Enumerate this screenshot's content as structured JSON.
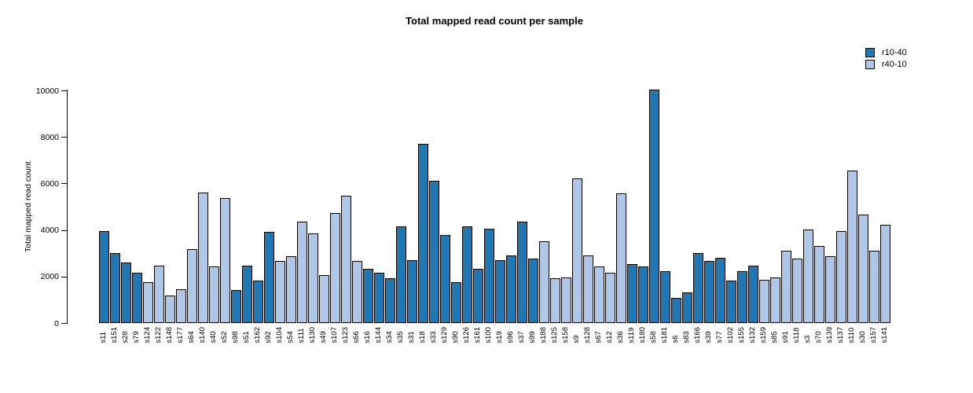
{
  "title": "Total mapped read count per sample",
  "y_axis": {
    "label": "Total mapped read count",
    "ticks": [
      0,
      2000,
      4000,
      6000,
      8000,
      10000
    ],
    "max": 10000
  },
  "legend": [
    {
      "label": "r10-40",
      "series": "r10-40"
    },
    {
      "label": "r40-10",
      "series": "r40-10"
    }
  ],
  "colors": {
    "r10-40": "#1f77b4",
    "r40-10": "#aec7e8"
  },
  "chart_data": {
    "type": "bar",
    "title": "Total mapped read count per sample",
    "xlabel": "",
    "ylabel": "Total mapped read count",
    "ylim": [
      0,
      10000
    ],
    "grid": false,
    "legend_position": "top-right",
    "series_names": [
      "r10-40",
      "r40-10"
    ],
    "samples": [
      {
        "label": "s11",
        "value": 3900,
        "series": "r10-40"
      },
      {
        "label": "s151",
        "value": 2950,
        "series": "r10-40"
      },
      {
        "label": "s28",
        "value": 2550,
        "series": "r10-40"
      },
      {
        "label": "s79",
        "value": 2100,
        "series": "r10-40"
      },
      {
        "label": "s124",
        "value": 1700,
        "series": "r40-10"
      },
      {
        "label": "s122",
        "value": 2400,
        "series": "r40-10"
      },
      {
        "label": "s148",
        "value": 1100,
        "series": "r40-10"
      },
      {
        "label": "s177",
        "value": 1400,
        "series": "r40-10"
      },
      {
        "label": "s64",
        "value": 3100,
        "series": "r40-10"
      },
      {
        "label": "s140",
        "value": 5550,
        "series": "r40-10"
      },
      {
        "label": "s40",
        "value": 2350,
        "series": "r40-10"
      },
      {
        "label": "s52",
        "value": 5300,
        "series": "r40-10"
      },
      {
        "label": "s98",
        "value": 1350,
        "series": "r10-40"
      },
      {
        "label": "s51",
        "value": 2400,
        "series": "r10-40"
      },
      {
        "label": "s162",
        "value": 1750,
        "series": "r10-40"
      },
      {
        "label": "s92",
        "value": 3850,
        "series": "r10-40"
      },
      {
        "label": "s104",
        "value": 2600,
        "series": "r40-10"
      },
      {
        "label": "s54",
        "value": 2800,
        "series": "r40-10"
      },
      {
        "label": "s111",
        "value": 4300,
        "series": "r40-10"
      },
      {
        "label": "s130",
        "value": 3800,
        "series": "r40-10"
      },
      {
        "label": "s49",
        "value": 2000,
        "series": "r40-10"
      },
      {
        "label": "s107",
        "value": 4650,
        "series": "r40-10"
      },
      {
        "label": "s123",
        "value": 5400,
        "series": "r40-10"
      },
      {
        "label": "s66",
        "value": 2600,
        "series": "r40-10"
      },
      {
        "label": "s16",
        "value": 2250,
        "series": "r10-40"
      },
      {
        "label": "s144",
        "value": 2100,
        "series": "r10-40"
      },
      {
        "label": "s34",
        "value": 1850,
        "series": "r10-40"
      },
      {
        "label": "s35",
        "value": 4100,
        "series": "r10-40"
      },
      {
        "label": "s31",
        "value": 2650,
        "series": "r10-40"
      },
      {
        "label": "s18",
        "value": 7650,
        "series": "r10-40"
      },
      {
        "label": "s33",
        "value": 6050,
        "series": "r10-40"
      },
      {
        "label": "s129",
        "value": 3700,
        "series": "r10-40"
      },
      {
        "label": "s90",
        "value": 1700,
        "series": "r10-40"
      },
      {
        "label": "s126",
        "value": 4100,
        "series": "r10-40"
      },
      {
        "label": "s161",
        "value": 2250,
        "series": "r10-40"
      },
      {
        "label": "s100",
        "value": 4000,
        "series": "r10-40"
      },
      {
        "label": "s19",
        "value": 2650,
        "series": "r10-40"
      },
      {
        "label": "s96",
        "value": 2850,
        "series": "r10-40"
      },
      {
        "label": "s37",
        "value": 4300,
        "series": "r10-40"
      },
      {
        "label": "s99",
        "value": 2700,
        "series": "r10-40"
      },
      {
        "label": "s188",
        "value": 3450,
        "series": "r40-10"
      },
      {
        "label": "s125",
        "value": 1850,
        "series": "r40-10"
      },
      {
        "label": "s158",
        "value": 1900,
        "series": "r40-10"
      },
      {
        "label": "s9",
        "value": 6150,
        "series": "r40-10"
      },
      {
        "label": "s128",
        "value": 2850,
        "series": "r40-10"
      },
      {
        "label": "s67",
        "value": 2350,
        "series": "r40-10"
      },
      {
        "label": "s12",
        "value": 2100,
        "series": "r40-10"
      },
      {
        "label": "s36",
        "value": 5500,
        "series": "r40-10"
      },
      {
        "label": "s119",
        "value": 2450,
        "series": "r10-40"
      },
      {
        "label": "s180",
        "value": 2350,
        "series": "r10-40"
      },
      {
        "label": "s58",
        "value": 9950,
        "series": "r10-40"
      },
      {
        "label": "s181",
        "value": 2150,
        "series": "r10-40"
      },
      {
        "label": "s6",
        "value": 1000,
        "series": "r10-40"
      },
      {
        "label": "s83",
        "value": 1250,
        "series": "r10-40"
      },
      {
        "label": "s166",
        "value": 2950,
        "series": "r10-40"
      },
      {
        "label": "s39",
        "value": 2600,
        "series": "r10-40"
      },
      {
        "label": "s77",
        "value": 2750,
        "series": "r10-40"
      },
      {
        "label": "s102",
        "value": 1750,
        "series": "r10-40"
      },
      {
        "label": "s155",
        "value": 2150,
        "series": "r10-40"
      },
      {
        "label": "s132",
        "value": 2400,
        "series": "r10-40"
      },
      {
        "label": "s159",
        "value": 1800,
        "series": "r40-10"
      },
      {
        "label": "s85",
        "value": 1900,
        "series": "r40-10"
      },
      {
        "label": "s91",
        "value": 3050,
        "series": "r40-10"
      },
      {
        "label": "s118",
        "value": 2700,
        "series": "r40-10"
      },
      {
        "label": "s3",
        "value": 3950,
        "series": "r40-10"
      },
      {
        "label": "s70",
        "value": 3250,
        "series": "r40-10"
      },
      {
        "label": "s139",
        "value": 2800,
        "series": "r40-10"
      },
      {
        "label": "s137",
        "value": 3900,
        "series": "r40-10"
      },
      {
        "label": "s110",
        "value": 6500,
        "series": "r40-10"
      },
      {
        "label": "s30",
        "value": 4600,
        "series": "r40-10"
      },
      {
        "label": "s157",
        "value": 3050,
        "series": "r40-10"
      },
      {
        "label": "s141",
        "value": 4150,
        "series": "r40-10"
      }
    ]
  }
}
